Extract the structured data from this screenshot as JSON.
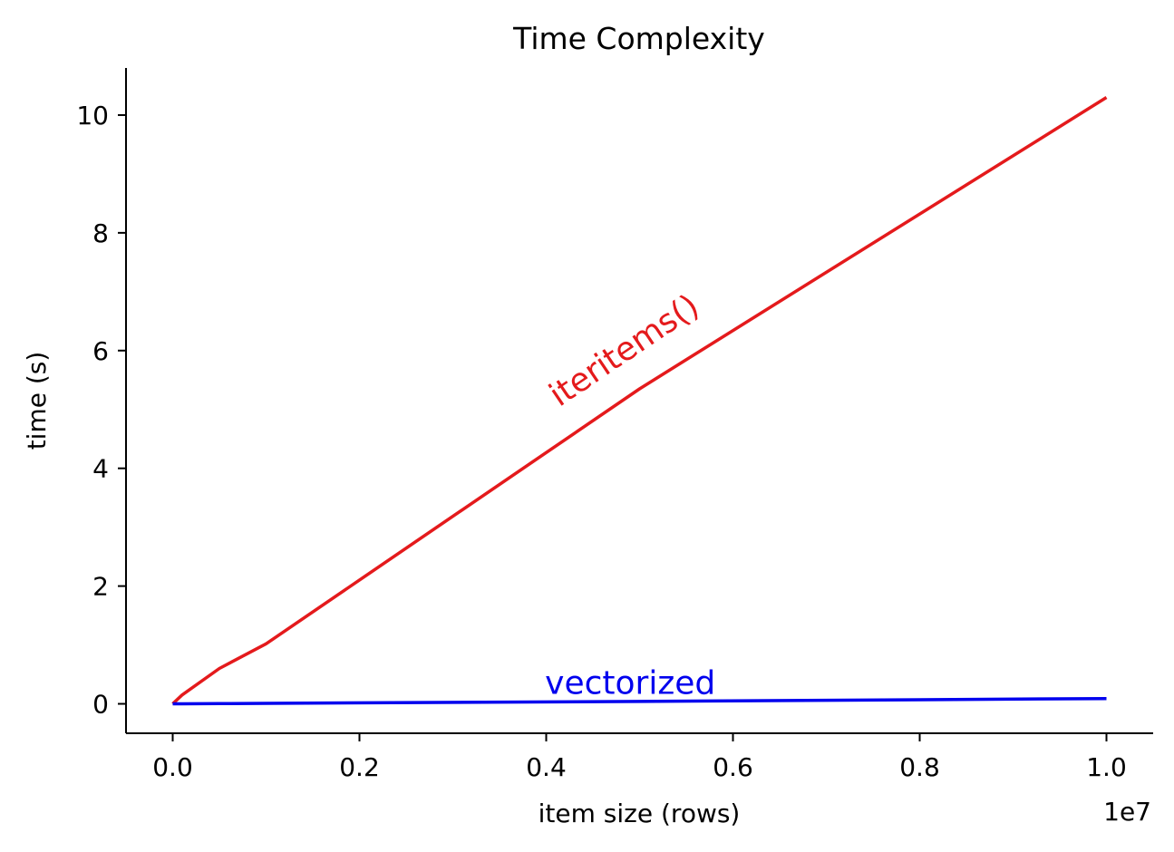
{
  "chart_data": {
    "type": "line",
    "title": "Time Complexity",
    "xlabel": "item size (rows)",
    "ylabel": "time (s)",
    "x_offset_text": "1e7",
    "x_ticks": [
      "0.0",
      "0.2",
      "0.4",
      "0.6",
      "0.8",
      "1.0"
    ],
    "y_ticks": [
      "0",
      "2",
      "4",
      "6",
      "8",
      "10"
    ],
    "xlim": [
      -0.05,
      1.05
    ],
    "ylim": [
      -0.5,
      10.8
    ],
    "x_unit_multiplier": 10000000,
    "grid": false,
    "legend": "none",
    "series": [
      {
        "color": "#e41a1c",
        "x": [
          0,
          0.01,
          0.05,
          0.1,
          0.5,
          1.0
        ],
        "y": [
          0,
          0.15,
          0.6,
          1.02,
          5.35,
          10.3
        ]
      },
      {
        "color": "#0000ee",
        "x": [
          0,
          0.01,
          0.05,
          0.1,
          0.5,
          1.0
        ],
        "y": [
          0,
          0.001,
          0.004,
          0.008,
          0.04,
          0.09
        ]
      }
    ],
    "annotations": [
      {
        "text": "iteritems()",
        "x": 0.49,
        "y": 5.85,
        "color": "#e41a1c",
        "rotation": -34
      },
      {
        "text": "vectorized",
        "x": 0.49,
        "y": 0.17,
        "color": "#0000ee",
        "rotation": 0
      }
    ]
  }
}
